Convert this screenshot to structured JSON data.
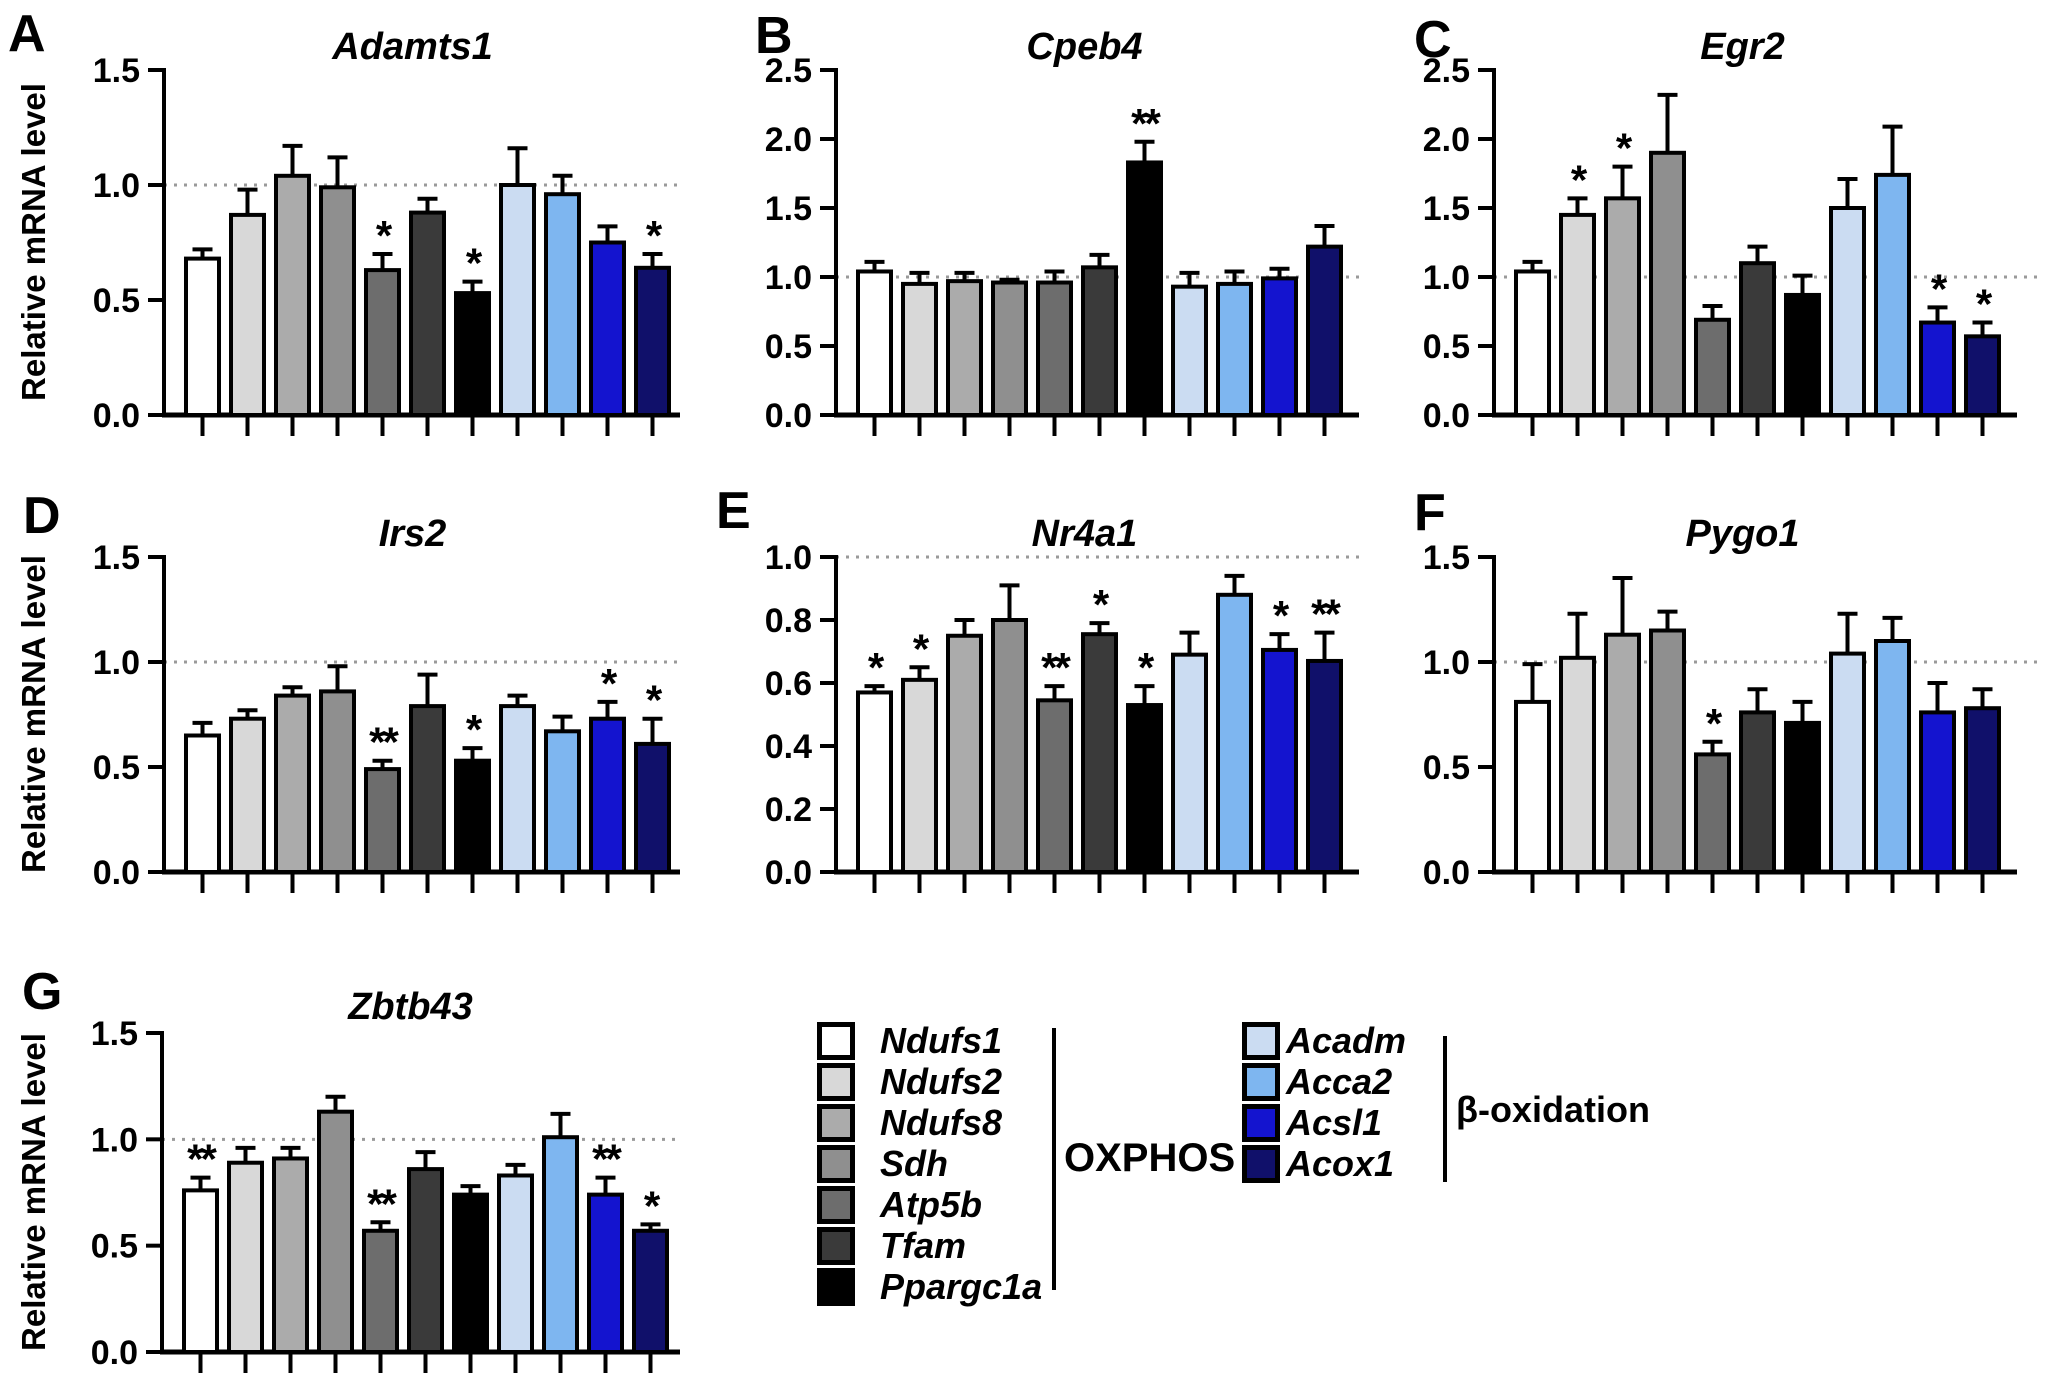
{
  "axis": {
    "ylabel": "Relative mRNA level"
  },
  "categories": [
    "Ndufs1",
    "Ndufs2",
    "Ndufs8",
    "Sdh",
    "Atp5b",
    "Tfam",
    "Ppargc1a",
    "Acadm",
    "Acca2",
    "Acsl1",
    "Acox1"
  ],
  "bar_colors": [
    "#FFFFFF",
    "#D8D8D8",
    "#ABABAB",
    "#8F8F8F",
    "#6D6D6D",
    "#3A3A3A",
    "#000000",
    "#CBDCF2",
    "#7EB6F0",
    "#1414CF",
    "#10106A"
  ],
  "reference_line_color": "#9A9A9A",
  "chart_data": [
    {
      "type": "bar",
      "letter": "A",
      "title": "Adamts1",
      "ylabel": "Relative mRNA level",
      "ylim": [
        0,
        1.5
      ],
      "yticks": [
        0.0,
        0.5,
        1.0,
        1.5
      ],
      "reference_line": 1.0,
      "categories": [
        "Ndufs1",
        "Ndufs2",
        "Ndufs8",
        "Sdh",
        "Atp5b",
        "Tfam",
        "Ppargc1a",
        "Acadm",
        "Acca2",
        "Acsl1",
        "Acox1"
      ],
      "values": [
        0.68,
        0.87,
        1.04,
        0.99,
        0.63,
        0.88,
        0.53,
        1.0,
        0.96,
        0.75,
        0.64
      ],
      "errors": [
        0.04,
        0.11,
        0.13,
        0.13,
        0.07,
        0.06,
        0.05,
        0.16,
        0.08,
        0.07,
        0.06
      ],
      "significance": [
        "",
        "",
        "",
        "",
        "*",
        "",
        "*",
        "",
        "",
        "",
        "*"
      ]
    },
    {
      "type": "bar",
      "letter": "B",
      "title": "Cpeb4",
      "ylabel": null,
      "ylim": [
        0,
        2.5
      ],
      "yticks": [
        0.0,
        0.5,
        1.0,
        1.5,
        2.0,
        2.5
      ],
      "reference_line": 1.0,
      "categories": [
        "Ndufs1",
        "Ndufs2",
        "Ndufs8",
        "Sdh",
        "Atp5b",
        "Tfam",
        "Ppargc1a",
        "Acadm",
        "Acca2",
        "Acsl1",
        "Acox1"
      ],
      "values": [
        1.04,
        0.95,
        0.97,
        0.96,
        0.96,
        1.07,
        1.83,
        0.93,
        0.95,
        0.99,
        1.22
      ],
      "errors": [
        0.07,
        0.08,
        0.06,
        0.02,
        0.08,
        0.09,
        0.15,
        0.1,
        0.09,
        0.07,
        0.15
      ],
      "significance": [
        "",
        "",
        "",
        "",
        "",
        "",
        "**",
        "",
        "",
        "",
        ""
      ]
    },
    {
      "type": "bar",
      "letter": "C",
      "title": "Egr2",
      "ylabel": null,
      "ylim": [
        0,
        2.5
      ],
      "yticks": [
        0.0,
        0.5,
        1.0,
        1.5,
        2.0,
        2.5
      ],
      "reference_line": 1.0,
      "categories": [
        "Ndufs1",
        "Ndufs2",
        "Ndufs8",
        "Sdh",
        "Atp5b",
        "Tfam",
        "Ppargc1a",
        "Acadm",
        "Acca2",
        "Acsl1",
        "Acox1"
      ],
      "values": [
        1.04,
        1.45,
        1.57,
        1.9,
        0.69,
        1.1,
        0.87,
        1.5,
        1.74,
        0.67,
        0.57
      ],
      "errors": [
        0.07,
        0.12,
        0.23,
        0.42,
        0.1,
        0.12,
        0.14,
        0.21,
        0.35,
        0.11,
        0.1
      ],
      "significance": [
        "",
        "*",
        "*",
        "",
        "",
        "",
        "",
        "",
        "",
        "*",
        "*"
      ]
    },
    {
      "type": "bar",
      "letter": "D",
      "title": "Irs2",
      "ylabel": "Relative mRNA level",
      "ylim": [
        0,
        1.5
      ],
      "yticks": [
        0.0,
        0.5,
        1.0,
        1.5
      ],
      "reference_line": 1.0,
      "categories": [
        "Ndufs1",
        "Ndufs2",
        "Ndufs8",
        "Sdh",
        "Atp5b",
        "Tfam",
        "Ppargc1a",
        "Acadm",
        "Acca2",
        "Acsl1",
        "Acox1"
      ],
      "values": [
        0.65,
        0.73,
        0.84,
        0.86,
        0.49,
        0.79,
        0.53,
        0.79,
        0.67,
        0.73,
        0.61
      ],
      "errors": [
        0.06,
        0.04,
        0.04,
        0.12,
        0.04,
        0.15,
        0.06,
        0.05,
        0.07,
        0.08,
        0.12
      ],
      "significance": [
        "",
        "",
        "",
        "",
        "**",
        "",
        "*",
        "",
        "",
        "*",
        "*"
      ]
    },
    {
      "type": "bar",
      "letter": "E",
      "title": "Nr4a1",
      "ylabel": null,
      "ylim": [
        0,
        1.0
      ],
      "yticks": [
        0.0,
        0.2,
        0.4,
        0.6,
        0.8,
        1.0
      ],
      "reference_line": 1.0,
      "categories": [
        "Ndufs1",
        "Ndufs2",
        "Ndufs8",
        "Sdh",
        "Atp5b",
        "Tfam",
        "Ppargc1a",
        "Acadm",
        "Acca2",
        "Acsl1",
        "Acox1"
      ],
      "values": [
        0.57,
        0.61,
        0.75,
        0.8,
        0.545,
        0.755,
        0.53,
        0.69,
        0.88,
        0.705,
        0.67
      ],
      "errors": [
        0.02,
        0.04,
        0.05,
        0.11,
        0.045,
        0.035,
        0.06,
        0.07,
        0.06,
        0.05,
        0.09
      ],
      "significance": [
        "*",
        "*",
        "",
        "",
        "**",
        "*",
        "*",
        "",
        "",
        "*",
        "**"
      ]
    },
    {
      "type": "bar",
      "letter": "F",
      "title": "Pygo1",
      "ylabel": null,
      "ylim": [
        0,
        1.5
      ],
      "yticks": [
        0.0,
        0.5,
        1.0,
        1.5
      ],
      "reference_line": 1.0,
      "categories": [
        "Ndufs1",
        "Ndufs2",
        "Ndufs8",
        "Sdh",
        "Atp5b",
        "Tfam",
        "Ppargc1a",
        "Acadm",
        "Acca2",
        "Acsl1",
        "Acox1"
      ],
      "values": [
        0.81,
        1.02,
        1.13,
        1.15,
        0.56,
        0.76,
        0.71,
        1.04,
        1.1,
        0.76,
        0.78
      ],
      "errors": [
        0.18,
        0.21,
        0.27,
        0.09,
        0.06,
        0.11,
        0.1,
        0.19,
        0.11,
        0.14,
        0.09
      ],
      "significance": [
        "",
        "",
        "",
        "",
        "*",
        "",
        "",
        "",
        "",
        "",
        ""
      ]
    },
    {
      "type": "bar",
      "letter": "G",
      "title": "Zbtb43",
      "ylabel": "Relative mRNA level",
      "ylim": [
        0,
        1.5
      ],
      "yticks": [
        0.0,
        0.5,
        1.0,
        1.5
      ],
      "reference_line": 1.0,
      "categories": [
        "Ndufs1",
        "Ndufs2",
        "Ndufs8",
        "Sdh",
        "Atp5b",
        "Tfam",
        "Ppargc1a",
        "Acadm",
        "Acca2",
        "Acsl1",
        "Acox1"
      ],
      "values": [
        0.76,
        0.89,
        0.91,
        1.13,
        0.57,
        0.86,
        0.74,
        0.83,
        1.01,
        0.74,
        0.57
      ],
      "errors": [
        0.06,
        0.07,
        0.05,
        0.07,
        0.04,
        0.08,
        0.04,
        0.05,
        0.11,
        0.08,
        0.03
      ],
      "significance": [
        "**",
        "",
        "",
        "",
        "**",
        "",
        "",
        "",
        "",
        "**",
        "*"
      ]
    }
  ],
  "legend": {
    "groups": [
      {
        "label": "OXPHOS",
        "items": [
          {
            "gene": "Ndufs1",
            "color": "#FFFFFF"
          },
          {
            "gene": "Ndufs2",
            "color": "#D8D8D8"
          },
          {
            "gene": "Ndufs8",
            "color": "#ABABAB"
          },
          {
            "gene": "Sdh",
            "color": "#8F8F8F"
          },
          {
            "gene": "Atp5b",
            "color": "#6D6D6D"
          },
          {
            "gene": "Tfam",
            "color": "#3A3A3A"
          },
          {
            "gene": "Ppargc1a",
            "color": "#000000"
          }
        ]
      },
      {
        "label": "β-oxidation",
        "items": [
          {
            "gene": "Acadm",
            "color": "#CBDCF2"
          },
          {
            "gene": "Acca2",
            "color": "#7EB6F0"
          },
          {
            "gene": "Acsl1",
            "color": "#1414CF"
          },
          {
            "gene": "Acox1",
            "color": "#10106A"
          }
        ]
      }
    ]
  }
}
